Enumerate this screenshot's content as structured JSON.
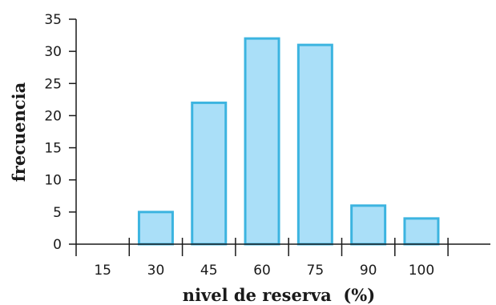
{
  "chart_data": {
    "type": "bar",
    "categories": [
      "15",
      "30",
      "45",
      "60",
      "75",
      "90",
      "100"
    ],
    "values": [
      0,
      5,
      22,
      32,
      31,
      6,
      4
    ],
    "xlabel": "nivel de reserva  (%)",
    "ylabel": "frecuencia",
    "y_ticks": [
      "0",
      "5",
      "10",
      "15",
      "20",
      "25",
      "30",
      "35"
    ],
    "ylim": [
      0,
      35
    ],
    "grid": false,
    "colors": {
      "bar_fill": "#aadff8",
      "bar_stroke": "#3cb4e0",
      "axis": "#1a1a1a"
    }
  }
}
